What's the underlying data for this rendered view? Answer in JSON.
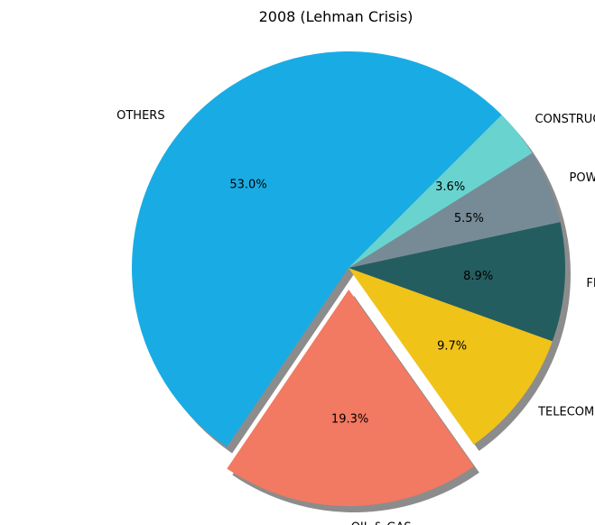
{
  "chart_data": {
    "type": "pie",
    "title": "2008 (Lehman Crisis)",
    "start_angle_deg": 45,
    "direction": "counterclockwise",
    "shadow": true,
    "slices": [
      {
        "label": "OTHERS",
        "value": 53.0,
        "pct_label": "53.0%",
        "color": "#19ACE4",
        "explode": false
      },
      {
        "label": "OIL & GAS",
        "value": 19.3,
        "pct_label": "19.3%",
        "color": "#F27962",
        "explode": true
      },
      {
        "label": "TELECOM",
        "value": 9.7,
        "pct_label": "9.7%",
        "color": "#F0C319",
        "explode": false
      },
      {
        "label": "FINANCIAL SERVICES",
        "value": 8.9,
        "pct_label": "8.9%",
        "color": "#245D5F",
        "explode": false
      },
      {
        "label": "POWER",
        "value": 5.5,
        "pct_label": "5.5%",
        "color": "#768B96",
        "explode": false
      },
      {
        "label": "CONSTRUCTION",
        "value": 3.6,
        "pct_label": "3.6%",
        "color": "#69D3CF",
        "explode": false
      }
    ]
  }
}
